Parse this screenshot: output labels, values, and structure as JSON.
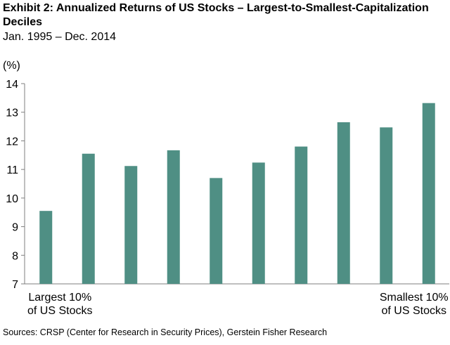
{
  "header": {
    "title": "Exhibit 2: Annualized Returns of US Stocks – Largest-to-Smallest-Capitalization Deciles",
    "subtitle": "Jan. 1995 – Dec. 2014"
  },
  "footer": {
    "source": "Sources: CRSP (Center for Research in Security Prices), Gerstein Fisher Research"
  },
  "chart_data": {
    "type": "bar",
    "title": "Exhibit 2: Annualized Returns of US Stocks – Largest-to-Smallest-Capitalization Deciles",
    "subtitle": "Jan. 1995 – Dec. 2014",
    "ylabel": "(%)",
    "xlabel": "",
    "ylim": [
      7,
      14
    ],
    "yticks": [
      7,
      8,
      9,
      10,
      11,
      12,
      13,
      14
    ],
    "categories": [
      "1",
      "2",
      "3",
      "4",
      "5",
      "6",
      "7",
      "8",
      "9",
      "10"
    ],
    "category_labels": {
      "first": [
        "Largest 10%",
        "of US Stocks"
      ],
      "last": [
        "Smallest 10%",
        "of US Stocks"
      ]
    },
    "values": [
      9.55,
      11.55,
      11.12,
      11.67,
      10.7,
      11.24,
      11.8,
      12.65,
      12.47,
      13.32
    ],
    "bar_color": "#4f8f84",
    "grid": false
  }
}
